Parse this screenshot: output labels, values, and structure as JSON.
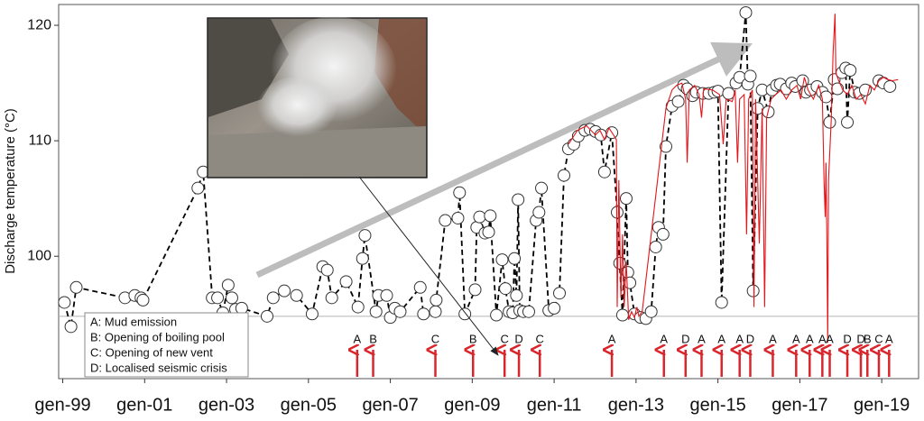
{
  "chart_data": {
    "type": "line",
    "y_label": "Discharge temperature (°C)",
    "xlim": [
      1998.9,
      2019.9
    ],
    "ylim": [
      89.4,
      121.8
    ],
    "xticks": [
      {
        "value": 1999,
        "label": "gen-99"
      },
      {
        "value": 2001,
        "label": "gen-01"
      },
      {
        "value": 2003,
        "label": "gen-03"
      },
      {
        "value": 2005,
        "label": "gen-05"
      },
      {
        "value": 2007,
        "label": "gen-07"
      },
      {
        "value": 2009,
        "label": "gen-09"
      },
      {
        "value": 2011,
        "label": "gen-11"
      },
      {
        "value": 2013,
        "label": "gen-13"
      },
      {
        "value": 2015,
        "label": "gen-15"
      },
      {
        "value": 2017,
        "label": "gen-17"
      },
      {
        "value": 2019,
        "label": "gen-19"
      }
    ],
    "yticks": [
      100,
      110,
      120
    ],
    "reference_line": 94.8,
    "series": [
      {
        "color": "#000000",
        "dashed": true,
        "markers": true,
        "x": [
          1999.04,
          1999.2,
          1999.33,
          2000.52,
          2000.76,
          2000.91,
          2000.96,
          2002.3,
          2002.43,
          2002.65,
          2002.78,
          2002.91,
          2003.04,
          2003.13,
          2003.22,
          2003.37,
          2003.99,
          2004.14,
          2004.41,
          2004.71,
          2005.09,
          2005.35,
          2005.46,
          2005.57,
          2005.92,
          2006.21,
          2006.32,
          2006.38,
          2006.65,
          2006.71,
          2006.91,
          2007.0,
          2007.11,
          2007.24,
          2007.73,
          2007.81,
          2008.1,
          2008.12,
          2008.34,
          2008.65,
          2008.69,
          2008.82,
          2009.07,
          2009.11,
          2009.18,
          2009.31,
          2009.4,
          2009.44,
          2009.59,
          2009.73,
          2009.81,
          2009.9,
          2009.99,
          2010.03,
          2010.08,
          2010.12,
          2010.16,
          2010.25,
          2010.38,
          2010.56,
          2010.63,
          2010.69,
          2010.87,
          2011.0,
          2011.13,
          2011.24,
          2011.35,
          2011.48,
          2011.59,
          2011.75,
          2011.88,
          2012.01,
          2012.14,
          2012.23,
          2012.41,
          2012.54,
          2012.6,
          2012.67,
          2012.76,
          2012.8,
          2012.85,
          2012.96,
          2013.11,
          2013.24,
          2013.37,
          2013.48,
          2013.55,
          2013.66,
          2013.73,
          2013.88,
          2014.03,
          2014.16,
          2014.25,
          2014.38,
          2014.47,
          2014.63,
          2014.78,
          2014.91,
          2015.0,
          2015.09,
          2015.26,
          2015.44,
          2015.53,
          2015.68,
          2015.73,
          2015.79,
          2015.86,
          2015.97,
          2016.08,
          2016.23,
          2016.32,
          2016.43,
          2016.52,
          2016.67,
          2016.8,
          2016.89,
          2017.07,
          2017.15,
          2017.26,
          2017.42,
          2017.55,
          2017.64,
          2017.73,
          2017.84,
          2017.92,
          2018.03,
          2018.12,
          2018.16,
          2018.23,
          2018.34,
          2018.45,
          2018.6,
          2018.93,
          2019.04,
          2019.2
        ],
        "values": [
          96.0,
          93.9,
          97.3,
          96.4,
          96.6,
          96.4,
          96.2,
          105.9,
          107.3,
          96.4,
          96.4,
          95.1,
          97.5,
          96.4,
          95.4,
          95.5,
          94.8,
          96.4,
          97.0,
          96.6,
          95.0,
          99.1,
          98.8,
          96.4,
          97.8,
          95.6,
          99.8,
          101.8,
          95.2,
          96.6,
          96.6,
          94.7,
          95.5,
          95.2,
          97.3,
          95.0,
          95.2,
          96.2,
          103.1,
          103.3,
          105.5,
          95.0,
          97.1,
          102.5,
          103.4,
          102.0,
          102.1,
          103.5,
          94.9,
          99.7,
          97.2,
          95.2,
          95.1,
          99.8,
          96.6,
          104.9,
          95.3,
          95.2,
          95.2,
          103.1,
          103.8,
          105.9,
          95.3,
          95.5,
          96.8,
          107.0,
          109.3,
          109.7,
          110.4,
          110.9,
          111.0,
          110.8,
          110.5,
          107.3,
          110.7,
          103.8,
          99.4,
          94.9,
          105.0,
          98.6,
          97.7,
          95.0,
          94.7,
          94.6,
          95.2,
          100.8,
          102.5,
          101.9,
          109.5,
          113.0,
          113.4,
          114.8,
          114.5,
          113.9,
          114.2,
          114.1,
          114.1,
          114.2,
          114.3,
          96.0,
          114.1,
          115.0,
          115.5,
          121.1,
          114.9,
          115.6,
          97.0,
          112.8,
          114.4,
          112.5,
          114.4,
          114.8,
          114.9,
          114.5,
          115.0,
          114.7,
          115.2,
          114.2,
          114.4,
          114.7,
          114.2,
          113.8,
          111.6,
          115.3,
          114.5,
          115.9,
          116.3,
          111.6,
          116.1,
          114.2,
          114.1,
          114.4,
          115.2,
          115.0,
          114.7
        ]
      },
      {
        "color": "#e3161b",
        "dashed": false,
        "markers": false,
        "x": [
          2011.35,
          2011.57,
          2011.79,
          2012.01,
          2012.12,
          2012.23,
          2012.34,
          2012.45,
          2012.52,
          2012.54,
          2012.58,
          2012.63,
          2012.67,
          2012.71,
          2012.76,
          2012.82,
          2012.89,
          2012.96,
          2013.02,
          2013.07,
          2013.15,
          2013.73,
          2013.88,
          2013.99,
          2014.12,
          2014.21,
          2014.25,
          2014.3,
          2014.43,
          2014.54,
          2014.6,
          2014.65,
          2014.87,
          2015.04,
          2015.13,
          2015.2,
          2015.35,
          2015.42,
          2015.48,
          2015.53,
          2015.64,
          2015.7,
          2015.75,
          2015.84,
          2015.88,
          2015.92,
          2016.01,
          2016.08,
          2016.14,
          2016.19,
          2016.3,
          2016.41,
          2016.54,
          2016.67,
          2016.8,
          2016.93,
          2017.02,
          2017.11,
          2017.2,
          2017.33,
          2017.46,
          2017.55,
          2017.59,
          2017.62,
          2017.64,
          2017.66,
          2017.68,
          2017.7,
          2017.77,
          2017.81,
          2017.86,
          2017.88,
          2017.95,
          2018.05,
          2018.16,
          2018.27,
          2018.38,
          2018.49,
          2018.6,
          2018.71,
          2018.82,
          2018.93,
          2019.04,
          2019.15,
          2019.26,
          2019.4
        ],
        "values": [
          109.7,
          110.9,
          111.3,
          110.5,
          110.9,
          110.1,
          111.1,
          110.5,
          110.1,
          95.6,
          106.6,
          96.4,
          101.9,
          95.6,
          99.5,
          94.5,
          95.2,
          94.7,
          95.6,
          94.8,
          95.2,
          112.8,
          114.4,
          114.8,
          115.0,
          113.6,
          108.1,
          114.4,
          114.8,
          114.0,
          112.0,
          114.5,
          114.4,
          114.0,
          109.7,
          113.6,
          113.4,
          114.4,
          108.1,
          113.6,
          114.0,
          101.9,
          113.6,
          114.4,
          95.6,
          113.6,
          101.1,
          112.8,
          95.6,
          112.0,
          113.6,
          114.0,
          114.4,
          113.6,
          114.4,
          114.8,
          113.6,
          115.5,
          114.4,
          113.6,
          114.8,
          113.6,
          106.6,
          103.4,
          108.1,
          101.9,
          92.5,
          106.6,
          112.0,
          117.5,
          121.0,
          115.9,
          115.2,
          114.4,
          114.0,
          114.8,
          113.6,
          114.0,
          113.2,
          114.8,
          114.4,
          115.2,
          115.5,
          115.3,
          115.2,
          115.3
        ]
      }
    ],
    "events": {
      "color": "#d9262c",
      "x": [
        2006.19,
        2006.58,
        2008.1,
        2009.02,
        2009.79,
        2010.14,
        2010.65,
        2012.41,
        2013.68,
        2014.21,
        2014.6,
        2015.09,
        2015.53,
        2015.79,
        2016.34,
        2016.91,
        2017.24,
        2017.55,
        2017.73,
        2018.16,
        2018.49,
        2018.65,
        2018.93,
        2019.18
      ],
      "labels": [
        "A",
        "B",
        "C",
        "B",
        "C",
        "D",
        "C",
        "A",
        "A",
        "D",
        "A",
        "A",
        "A",
        "D",
        "A",
        "A",
        "A",
        "A",
        "A",
        "D",
        "D",
        "B",
        "C",
        "A"
      ]
    },
    "legend_text": [
      "A: Mud emission",
      "B: Opening of boiling pool",
      "C: Opening of new vent",
      "D: Localised seismic crisis"
    ]
  }
}
